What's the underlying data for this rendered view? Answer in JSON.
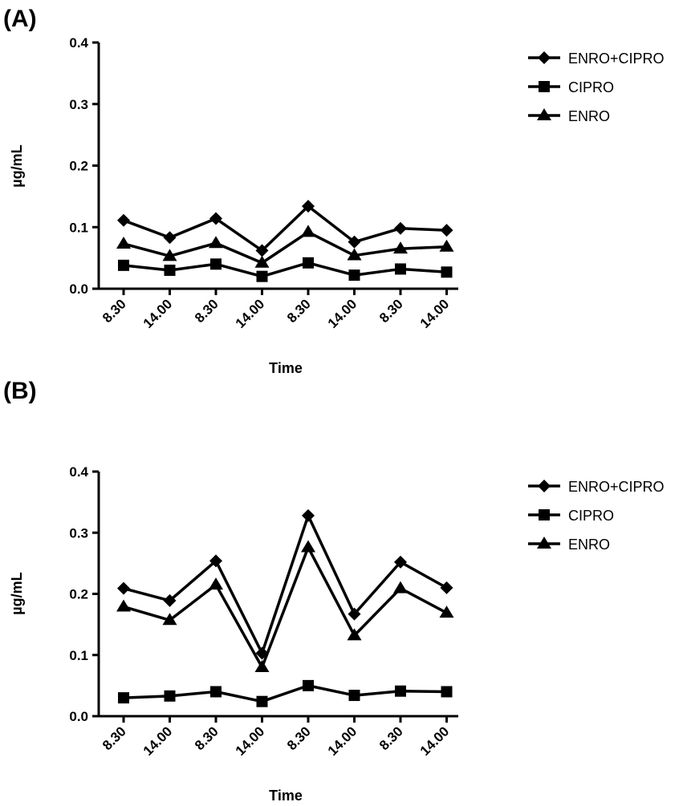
{
  "chart_data": [
    {
      "panel_label": "(A)",
      "type": "line",
      "categories": [
        "8.30",
        "14.00",
        "8.30",
        "14.00",
        "8.30",
        "14.00",
        "8.30",
        "14.00"
      ],
      "xlabel": "Time",
      "ylabel": "µg/mL",
      "ylim": [
        0,
        0.4
      ],
      "yticks": [
        "0.0",
        "0.1",
        "0.2",
        "0.3",
        "0.4"
      ],
      "legend_position": "top-right",
      "series": [
        {
          "name": "ENRO+CIPRO",
          "marker": "diamond",
          "values": [
            0.111,
            0.083,
            0.114,
            0.062,
            0.134,
            0.076,
            0.098,
            0.095
          ]
        },
        {
          "name": "CIPRO",
          "marker": "square",
          "values": [
            0.038,
            0.03,
            0.04,
            0.02,
            0.042,
            0.022,
            0.032,
            0.027
          ]
        },
        {
          "name": "ENRO",
          "marker": "triangle",
          "values": [
            0.073,
            0.053,
            0.074,
            0.042,
            0.092,
            0.054,
            0.065,
            0.068
          ]
        }
      ]
    },
    {
      "panel_label": "(B)",
      "type": "line",
      "categories": [
        "8.30",
        "14.00",
        "8.30",
        "14.00",
        "8.30",
        "14.00",
        "8.30",
        "14.00"
      ],
      "xlabel": "Time",
      "ylabel": "µg/mL",
      "ylim": [
        0,
        0.4
      ],
      "yticks": [
        "0.0",
        "0.1",
        "0.2",
        "0.3",
        "0.4"
      ],
      "legend_position": "top-right",
      "series": [
        {
          "name": "ENRO+CIPRO",
          "marker": "diamond",
          "values": [
            0.209,
            0.189,
            0.254,
            0.103,
            0.328,
            0.167,
            0.252,
            0.21
          ]
        },
        {
          "name": "CIPRO",
          "marker": "square",
          "values": [
            0.03,
            0.033,
            0.04,
            0.024,
            0.05,
            0.034,
            0.041,
            0.04
          ]
        },
        {
          "name": "ENRO",
          "marker": "triangle",
          "values": [
            0.179,
            0.157,
            0.215,
            0.08,
            0.276,
            0.132,
            0.209,
            0.169
          ]
        }
      ]
    }
  ]
}
